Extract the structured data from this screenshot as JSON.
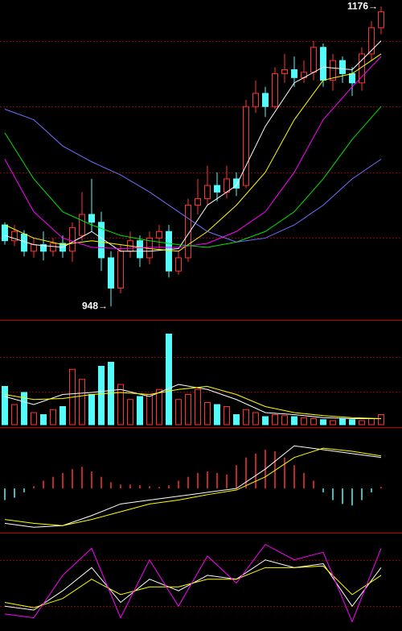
{
  "chart_data": [
    {
      "type": "candlestick",
      "open": [
        1010,
        998,
        1003,
        990,
        995,
        990,
        996,
        990,
        1002,
        1018,
        1012,
        985,
        962,
        990,
        998,
        985,
        1000,
        1005,
        975,
        985,
        1025,
        1030,
        1040,
        1035,
        1045,
        1040,
        1100,
        1110,
        1100,
        1125,
        1128,
        1122,
        1126,
        1145,
        1120,
        1135,
        1125,
        1118,
        1140,
        1160
      ],
      "high": [
        1012,
        1010,
        1006,
        1000,
        1005,
        1000,
        1002,
        1012,
        1035,
        1045,
        1020,
        990,
        995,
        1005,
        1002,
        1005,
        1010,
        1010,
        990,
        1030,
        1045,
        1055,
        1050,
        1055,
        1050,
        1105,
        1120,
        1115,
        1130,
        1140,
        1138,
        1135,
        1150,
        1148,
        1140,
        1138,
        1130,
        1145,
        1165,
        1176
      ],
      "low": [
        995,
        994,
        986,
        985,
        983,
        986,
        985,
        982,
        998,
        1005,
        975,
        948,
        958,
        985,
        978,
        980,
        992,
        970,
        972,
        982,
        1018,
        1025,
        1028,
        1030,
        1032,
        1038,
        1095,
        1092,
        1098,
        1118,
        1115,
        1118,
        1120,
        1115,
        1112,
        1118,
        1108,
        1112,
        1135,
        1155
      ],
      "close": [
        998,
        1005,
        990,
        995,
        990,
        996,
        990,
        1008,
        1018,
        1012,
        985,
        962,
        990,
        998,
        985,
        1000,
        1005,
        975,
        985,
        1025,
        1030,
        1040,
        1035,
        1045,
        1038,
        1100,
        1110,
        1100,
        1125,
        1128,
        1122,
        1126,
        1145,
        1120,
        1135,
        1125,
        1118,
        1140,
        1160,
        1172
      ],
      "up_color": "#ff3232",
      "down_color": "#54fcfc",
      "ylim": [
        939,
        1181
      ],
      "grid_lines": [
        1000,
        1050,
        1100,
        1150
      ],
      "lines": [
        {
          "color": "#ffffff",
          "x": [
            0,
            3,
            6,
            9,
            12,
            15,
            18,
            21,
            24,
            27,
            30,
            33,
            36,
            39
          ],
          "values": [
            1002,
            995,
            993,
            1005,
            990,
            990,
            992,
            1025,
            1040,
            1085,
            1118,
            1130,
            1128,
            1150
          ]
        },
        {
          "color": "#ffff00",
          "x": [
            0,
            3,
            6,
            9,
            12,
            15,
            18,
            21,
            24,
            27,
            30,
            33,
            36,
            39
          ],
          "values": [
            1010,
            1000,
            995,
            998,
            995,
            992,
            990,
            1005,
            1025,
            1050,
            1090,
            1120,
            1125,
            1140
          ]
        },
        {
          "color": "#ff00ff",
          "x": [
            0,
            3,
            6,
            9,
            12,
            15,
            18,
            21,
            24,
            27,
            30,
            33,
            36,
            39
          ],
          "values": [
            1060,
            1020,
            1000,
            993,
            992,
            993,
            993,
            996,
            1005,
            1020,
            1050,
            1090,
            1115,
            1138
          ]
        },
        {
          "color": "#00e600",
          "x": [
            0,
            3,
            6,
            9,
            12,
            15,
            18,
            21,
            24,
            27,
            30,
            33,
            36,
            39
          ],
          "values": [
            1080,
            1045,
            1020,
            1010,
            1002,
            998,
            995,
            993,
            997,
            1005,
            1020,
            1045,
            1075,
            1100
          ]
        },
        {
          "color": "#7070ff",
          "x": [
            0,
            3,
            6,
            9,
            12,
            15,
            18,
            21,
            24,
            27,
            30,
            33,
            36,
            39
          ],
          "values": [
            1098,
            1090,
            1070,
            1058,
            1048,
            1035,
            1020,
            1005,
            997,
            1000,
            1010,
            1025,
            1045,
            1060
          ]
        }
      ],
      "annotations": [
        {
          "text": "1176→",
          "x": 39,
          "y": 1176
        },
        {
          "text": "948→",
          "x": 11,
          "y": 948
        }
      ]
    },
    {
      "type": "bar",
      "values": [
        38,
        20,
        32,
        12,
        10,
        15,
        18,
        55,
        45,
        30,
        58,
        62,
        40,
        25,
        28,
        30,
        35,
        90,
        25,
        30,
        35,
        22,
        20,
        18,
        10,
        15,
        12,
        8,
        10,
        9,
        8,
        7,
        6,
        5,
        4,
        6,
        5,
        4,
        6,
        10
      ],
      "ylim": [
        0,
        100
      ],
      "grid_lines": [
        33,
        67
      ],
      "lines": [
        {
          "color": "#ffffff",
          "x": [
            0,
            3,
            6,
            9,
            12,
            15,
            18,
            21,
            24,
            27,
            30,
            33,
            36,
            39
          ],
          "values": [
            28,
            20,
            30,
            32,
            35,
            28,
            40,
            35,
            25,
            12,
            10,
            7,
            6,
            6
          ]
        },
        {
          "color": "#ffff00",
          "x": [
            0,
            3,
            6,
            9,
            12,
            15,
            18,
            21,
            24,
            27,
            30,
            33,
            36,
            39
          ],
          "values": [
            30,
            25,
            26,
            30,
            32,
            30,
            35,
            38,
            30,
            18,
            12,
            9,
            7,
            6
          ]
        }
      ]
    },
    {
      "type": "bar",
      "values": [
        -0.15,
        -0.12,
        -0.05,
        0.03,
        0.1,
        0.15,
        0.2,
        0.25,
        0.28,
        0.22,
        0.15,
        0.08,
        0.05,
        0.05,
        0.04,
        0.03,
        0.02,
        0.04,
        0.1,
        0.15,
        0.2,
        0.22,
        0.2,
        0.18,
        0.3,
        0.4,
        0.45,
        0.5,
        0.48,
        0.4,
        0.3,
        0.2,
        0.1,
        -0.05,
        -0.15,
        -0.2,
        -0.22,
        -0.15,
        -0.05,
        0.02
      ],
      "ylim": [
        -0.55,
        0.75
      ],
      "grid_lines": [],
      "lines": [
        {
          "color": "#ffffff",
          "x": [
            0,
            3,
            6,
            9,
            12,
            15,
            18,
            21,
            24,
            27,
            30,
            33,
            36,
            39
          ],
          "values": [
            -0.45,
            -0.5,
            -0.48,
            -0.35,
            -0.2,
            -0.15,
            -0.1,
            -0.05,
            0.0,
            0.25,
            0.55,
            0.5,
            0.45,
            0.4
          ]
        },
        {
          "color": "#ffff00",
          "x": [
            0,
            3,
            6,
            9,
            12,
            15,
            18,
            21,
            24,
            27,
            30,
            33,
            36,
            39
          ],
          "values": [
            -0.4,
            -0.45,
            -0.48,
            -0.4,
            -0.3,
            -0.2,
            -0.15,
            -0.08,
            -0.02,
            0.15,
            0.4,
            0.52,
            0.48,
            0.42
          ]
        }
      ]
    },
    {
      "type": "line",
      "ylim": [
        -10,
        110
      ],
      "grid_lines": [
        20,
        80
      ],
      "lines": [
        {
          "color": "#ffffff",
          "x": [
            0,
            3,
            6,
            9,
            12,
            15,
            18,
            21,
            24,
            27,
            30,
            33,
            36,
            39
          ],
          "values": [
            20,
            15,
            40,
            70,
            25,
            55,
            40,
            60,
            55,
            80,
            70,
            75,
            20,
            70
          ]
        },
        {
          "color": "#ffff00",
          "x": [
            0,
            3,
            6,
            9,
            12,
            15,
            18,
            21,
            24,
            27,
            30,
            33,
            36,
            39
          ],
          "values": [
            25,
            18,
            30,
            55,
            35,
            45,
            45,
            55,
            55,
            70,
            70,
            72,
            35,
            60
          ]
        },
        {
          "color": "#ff00ff",
          "x": [
            0,
            3,
            6,
            9,
            12,
            15,
            18,
            21,
            24,
            27,
            30,
            33,
            36,
            39
          ],
          "values": [
            10,
            5,
            60,
            95,
            5,
            80,
            20,
            85,
            50,
            100,
            80,
            90,
            0,
            95
          ]
        }
      ]
    }
  ]
}
